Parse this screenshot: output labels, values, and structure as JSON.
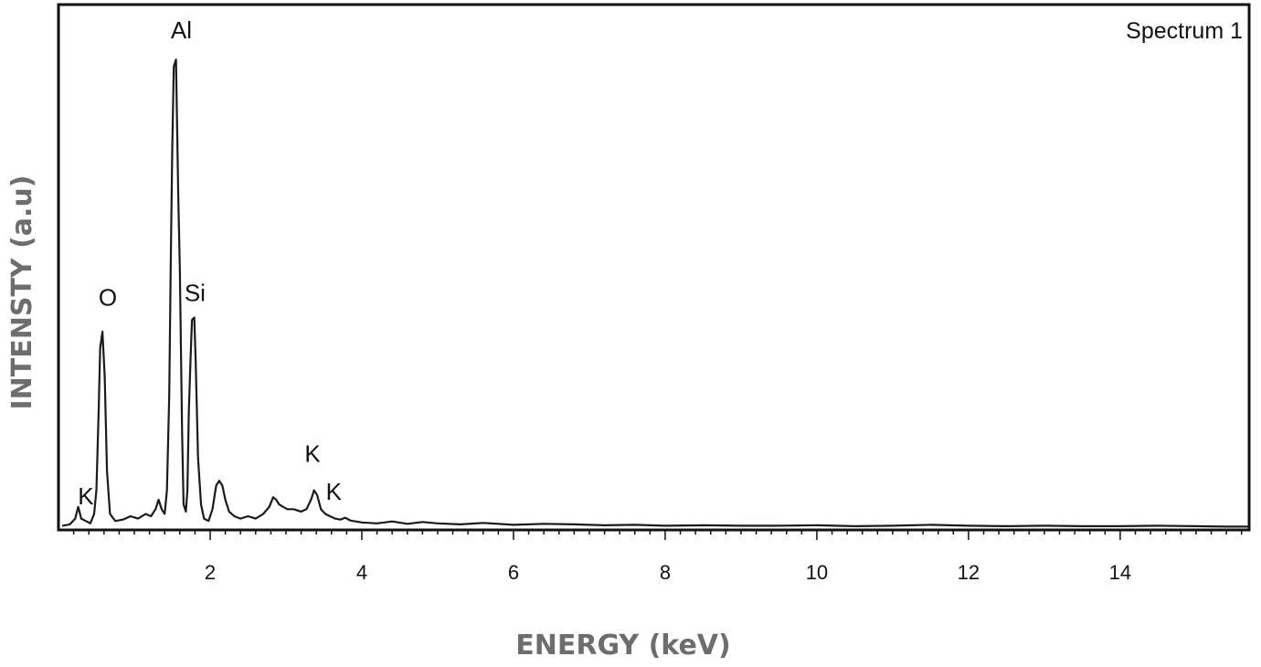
{
  "chart_data": {
    "type": "line",
    "title": "",
    "xlabel": "ENERGY (keV)",
    "ylabel": "INTENSTY (a.u)",
    "legend": "Spectrum 1",
    "legend_position": "top-right",
    "xlim": [
      0,
      15.7
    ],
    "ylim": [
      0,
      100
    ],
    "xticks": [
      2,
      4,
      6,
      8,
      10,
      12,
      14
    ],
    "grid": false,
    "colors": {
      "line": "#1a1a1a",
      "axes": "#111111",
      "axis_title": "#6d6d6d"
    },
    "series": [
      {
        "x": [
          0.05,
          0.15,
          0.22,
          0.26,
          0.3,
          0.36,
          0.42,
          0.47,
          0.5,
          0.53,
          0.55,
          0.58,
          0.61,
          0.64,
          0.68,
          0.75,
          0.85,
          0.95,
          1.05,
          1.15,
          1.22,
          1.28,
          1.32,
          1.36,
          1.4,
          1.43,
          1.46,
          1.48,
          1.5,
          1.52,
          1.55,
          1.58,
          1.6,
          1.63,
          1.65,
          1.68,
          1.7,
          1.72,
          1.74,
          1.76,
          1.79,
          1.81,
          1.84,
          1.88,
          1.92,
          1.98,
          2.03,
          2.08,
          2.12,
          2.16,
          2.2,
          2.25,
          2.32,
          2.4,
          2.5,
          2.6,
          2.7,
          2.78,
          2.83,
          2.87,
          2.91,
          2.96,
          3.02,
          3.1,
          3.2,
          3.27,
          3.33,
          3.37,
          3.41,
          3.46,
          3.52,
          3.58,
          3.65,
          3.72,
          3.78,
          3.85,
          4.0,
          4.2,
          4.4,
          4.6,
          4.8,
          5.0,
          5.3,
          5.6,
          6.0,
          6.4,
          6.8,
          7.2,
          7.6,
          8.0,
          8.5,
          9.0,
          9.5,
          10.0,
          10.5,
          11.0,
          11.5,
          12.0,
          12.5,
          13.0,
          13.5,
          14.0,
          14.5,
          15.0,
          15.4,
          15.7
        ],
        "y": [
          0.5,
          0.8,
          2.0,
          4.5,
          2.0,
          1.5,
          1.0,
          3.0,
          8.0,
          25.0,
          38.0,
          41.5,
          32.0,
          12.0,
          3.0,
          1.5,
          1.8,
          2.5,
          2.0,
          3.0,
          2.5,
          4.0,
          6.0,
          4.0,
          3.0,
          8.0,
          28.0,
          55.0,
          80.0,
          97.5,
          99.0,
          70.0,
          55.0,
          20.0,
          5.0,
          3.5,
          8.0,
          25.0,
          35.0,
          44.0,
          44.5,
          35.0,
          15.0,
          5.0,
          2.0,
          1.5,
          4.0,
          9.0,
          10.0,
          9.0,
          6.0,
          3.5,
          2.5,
          2.0,
          2.5,
          2.0,
          3.0,
          4.5,
          6.5,
          6.0,
          5.0,
          4.5,
          4.0,
          4.0,
          3.5,
          4.0,
          6.0,
          8.0,
          7.0,
          4.0,
          3.0,
          2.5,
          2.0,
          1.8,
          2.2,
          1.6,
          1.2,
          1.0,
          1.4,
          0.9,
          1.3,
          1.0,
          0.8,
          1.1,
          0.7,
          0.9,
          0.8,
          0.6,
          0.7,
          0.5,
          0.6,
          0.5,
          0.5,
          0.6,
          0.4,
          0.5,
          0.7,
          0.5,
          0.4,
          0.5,
          0.4,
          0.4,
          0.5,
          0.4,
          0.3,
          0.3
        ]
      }
    ],
    "annotations": [
      {
        "text": "K",
        "x": 0.36,
        "y": 5
      },
      {
        "text": "O",
        "x": 0.65,
        "y": 47
      },
      {
        "text": "Al",
        "x": 1.62,
        "y": 103.5
      },
      {
        "text": "Si",
        "x": 1.8,
        "y": 48
      },
      {
        "text": "K",
        "x": 3.35,
        "y": 14
      },
      {
        "text": "K",
        "x": 3.63,
        "y": 6
      }
    ]
  }
}
